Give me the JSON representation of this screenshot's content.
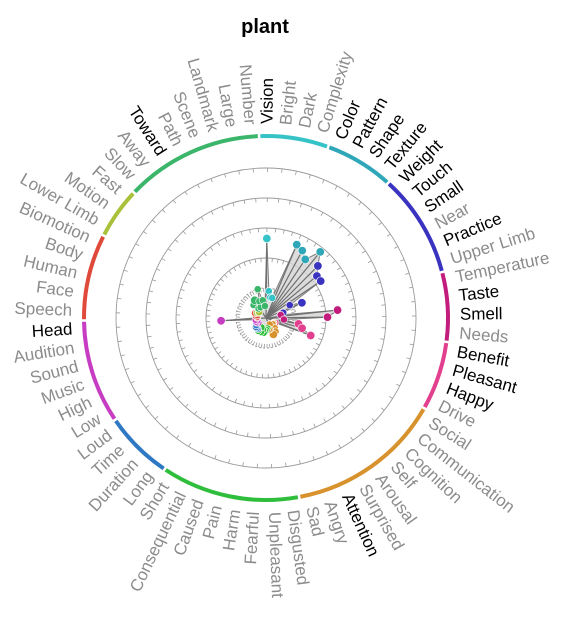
{
  "chart_data": {
    "type": "radar",
    "title": "plant",
    "grid": true,
    "rings": 5,
    "categories": [
      {
        "name": "Vision",
        "value": 2.65,
        "highlight": true
      },
      {
        "name": "Bright",
        "value": 0.9,
        "highlight": false
      },
      {
        "name": "Dark",
        "value": 0.7,
        "highlight": false
      },
      {
        "name": "Complexity",
        "value": 0.7,
        "highlight": false
      },
      {
        "name": "Color",
        "value": 2.65,
        "highlight": true
      },
      {
        "name": "Pattern",
        "value": 2.55,
        "highlight": true
      },
      {
        "name": "Shape",
        "value": 2.35,
        "highlight": true
      },
      {
        "name": "Texture",
        "value": 2.85,
        "highlight": true
      },
      {
        "name": "Weight",
        "value": 2.45,
        "highlight": true
      },
      {
        "name": "Touch",
        "value": 2.2,
        "highlight": true
      },
      {
        "name": "Small",
        "value": 2.2,
        "highlight": true
      },
      {
        "name": "Near",
        "value": 0.9,
        "highlight": false
      },
      {
        "name": "Practice",
        "value": 1.3,
        "highlight": true
      },
      {
        "name": "Upper Limb",
        "value": 0.6,
        "highlight": false
      },
      {
        "name": "Temperature",
        "value": 0.5,
        "highlight": false
      },
      {
        "name": "Taste",
        "value": 2.4,
        "highlight": true
      },
      {
        "name": "Smell",
        "value": 2.05,
        "highlight": true
      },
      {
        "name": "Needs",
        "value": 0.6,
        "highlight": false
      },
      {
        "name": "Benefit",
        "value": 1.1,
        "highlight": true
      },
      {
        "name": "Pleasant",
        "value": 1.25,
        "highlight": true
      },
      {
        "name": "Happy",
        "value": 1.6,
        "highlight": true
      },
      {
        "name": "Drive",
        "value": 0.35,
        "highlight": false
      },
      {
        "name": "Social",
        "value": 0.3,
        "highlight": false
      },
      {
        "name": "Communication",
        "value": 0.3,
        "highlight": false
      },
      {
        "name": "Cognition",
        "value": 0.3,
        "highlight": false
      },
      {
        "name": "Self",
        "value": 0.45,
        "highlight": false
      },
      {
        "name": "Arousal",
        "value": 0.55,
        "highlight": false
      },
      {
        "name": "Surprised",
        "value": 0.25,
        "highlight": false
      },
      {
        "name": "Attention",
        "value": 0.6,
        "highlight": true
      },
      {
        "name": "Angry",
        "value": 0.4,
        "highlight": false
      },
      {
        "name": "Sad",
        "value": 0.4,
        "highlight": false
      },
      {
        "name": "Disgusted",
        "value": 0.35,
        "highlight": false
      },
      {
        "name": "Unpleasant",
        "value": 0.4,
        "highlight": false
      },
      {
        "name": "Fearful",
        "value": 0.45,
        "highlight": false
      },
      {
        "name": "Harm",
        "value": 0.5,
        "highlight": false
      },
      {
        "name": "Pain",
        "value": 0.4,
        "highlight": false
      },
      {
        "name": "Caused",
        "value": 0.5,
        "highlight": false
      },
      {
        "name": "Consequential",
        "value": 0.35,
        "highlight": false
      },
      {
        "name": "Short",
        "value": 0.5,
        "highlight": false
      },
      {
        "name": "Long",
        "value": 0.45,
        "highlight": false
      },
      {
        "name": "Duration",
        "value": 0.45,
        "highlight": false
      },
      {
        "name": "Time",
        "value": 0.45,
        "highlight": false
      },
      {
        "name": "Loud",
        "value": 0.4,
        "highlight": false
      },
      {
        "name": "Low",
        "value": 0.3,
        "highlight": false
      },
      {
        "name": "High",
        "value": 0.35,
        "highlight": false
      },
      {
        "name": "Music",
        "value": 0.35,
        "highlight": false
      },
      {
        "name": "Sound",
        "value": 0.3,
        "highlight": false
      },
      {
        "name": "Audition",
        "value": 0.35,
        "highlight": false
      },
      {
        "name": "Head",
        "value": 1.5,
        "highlight": true
      },
      {
        "name": "Speech",
        "value": 0.3,
        "highlight": false
      },
      {
        "name": "Face",
        "value": 0.3,
        "highlight": false
      },
      {
        "name": "Human",
        "value": 0.35,
        "highlight": false
      },
      {
        "name": "Body",
        "value": 0.3,
        "highlight": false
      },
      {
        "name": "Biomotion",
        "value": 0.4,
        "highlight": false
      },
      {
        "name": "Lower Limb",
        "value": 0.35,
        "highlight": false
      },
      {
        "name": "Motion",
        "value": 0.3,
        "highlight": false
      },
      {
        "name": "Fast",
        "value": 0.3,
        "highlight": false
      },
      {
        "name": "Slow",
        "value": 0.6,
        "highlight": false
      },
      {
        "name": "Away",
        "value": 0.4,
        "highlight": false
      },
      {
        "name": "Toward",
        "value": 0.7,
        "highlight": true
      },
      {
        "name": "Path",
        "value": 0.4,
        "highlight": false
      },
      {
        "name": "Scene",
        "value": 0.6,
        "highlight": false
      },
      {
        "name": "Landmark",
        "value": 1.0,
        "highlight": false
      },
      {
        "name": "Large",
        "value": 0.6,
        "highlight": false
      },
      {
        "name": "Number",
        "value": 0.4,
        "highlight": false
      }
    ],
    "groups": [
      {
        "from": 0,
        "to": 3,
        "color": "#36c3c8"
      },
      {
        "from": 4,
        "to": 7,
        "color": "#2fa7b8"
      },
      {
        "from": 8,
        "to": 13,
        "color": "#3a33c0"
      },
      {
        "from": 14,
        "to": 17,
        "color": "#c21d7c"
      },
      {
        "from": 18,
        "to": 21,
        "color": "#e2408e"
      },
      {
        "from": 22,
        "to": 30,
        "color": "#d7922d"
      },
      {
        "from": 31,
        "to": 38,
        "color": "#2fbe3b"
      },
      {
        "from": 39,
        "to": 42,
        "color": "#2f78c4"
      },
      {
        "from": 43,
        "to": 48,
        "color": "#c63cc3"
      },
      {
        "from": 49,
        "to": 53,
        "color": "#e04a3a"
      },
      {
        "from": 54,
        "to": 56,
        "color": "#a8c03a"
      },
      {
        "from": 57,
        "to": 64,
        "color": "#3ab56a"
      }
    ],
    "colors": {
      "highlight_text": "#000000",
      "muted_text": "#8c8c8c",
      "fill": "#d6d6d6",
      "grid": "#9a9a9a"
    }
  }
}
